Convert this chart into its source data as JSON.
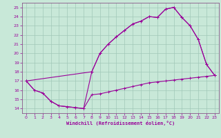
{
  "title": "",
  "xlabel": "Windchill (Refroidissement éolien,°C)",
  "bg_color": "#c8e8d8",
  "grid_color": "#a0c8b8",
  "line_color": "#990099",
  "spine_color": "#885588",
  "xlim": [
    -0.5,
    23.5
  ],
  "ylim": [
    13.5,
    25.5
  ],
  "yticks": [
    14,
    15,
    16,
    17,
    18,
    19,
    20,
    21,
    22,
    23,
    24,
    25
  ],
  "xticks": [
    0,
    1,
    2,
    3,
    4,
    5,
    6,
    7,
    8,
    9,
    10,
    11,
    12,
    13,
    14,
    15,
    16,
    17,
    18,
    19,
    20,
    21,
    22,
    23
  ],
  "line1_x": [
    0,
    1,
    2,
    3,
    4,
    5,
    6,
    7,
    8,
    9,
    10,
    11,
    12,
    13,
    14,
    15,
    16,
    17,
    18,
    19,
    20,
    21,
    22,
    23
  ],
  "line1_y": [
    17.0,
    16.0,
    15.7,
    14.8,
    14.3,
    14.2,
    14.1,
    14.0,
    15.5,
    15.6,
    15.8,
    16.0,
    16.2,
    16.4,
    16.6,
    16.8,
    16.9,
    17.0,
    17.1,
    17.2,
    17.3,
    17.4,
    17.5,
    17.6
  ],
  "line2_x": [
    0,
    1,
    2,
    3,
    4,
    5,
    6,
    7,
    8,
    9,
    10,
    11,
    12,
    13,
    14,
    15,
    16,
    17,
    18,
    19,
    20,
    21,
    22,
    23
  ],
  "line2_y": [
    17.0,
    16.0,
    15.7,
    14.8,
    14.3,
    14.2,
    14.1,
    14.0,
    18.0,
    20.0,
    21.0,
    21.8,
    22.5,
    23.2,
    23.5,
    24.0,
    23.9,
    24.8,
    25.0,
    23.9,
    23.0,
    21.5,
    18.8,
    17.6
  ],
  "line3_x": [
    0,
    8,
    9,
    10,
    11,
    12,
    13,
    14,
    15,
    16,
    17,
    18,
    19,
    20,
    21,
    22,
    23
  ],
  "line3_y": [
    17.0,
    18.0,
    20.0,
    21.0,
    21.8,
    22.5,
    23.2,
    23.5,
    24.0,
    23.9,
    24.8,
    25.0,
    23.9,
    23.0,
    21.5,
    18.8,
    17.6
  ]
}
